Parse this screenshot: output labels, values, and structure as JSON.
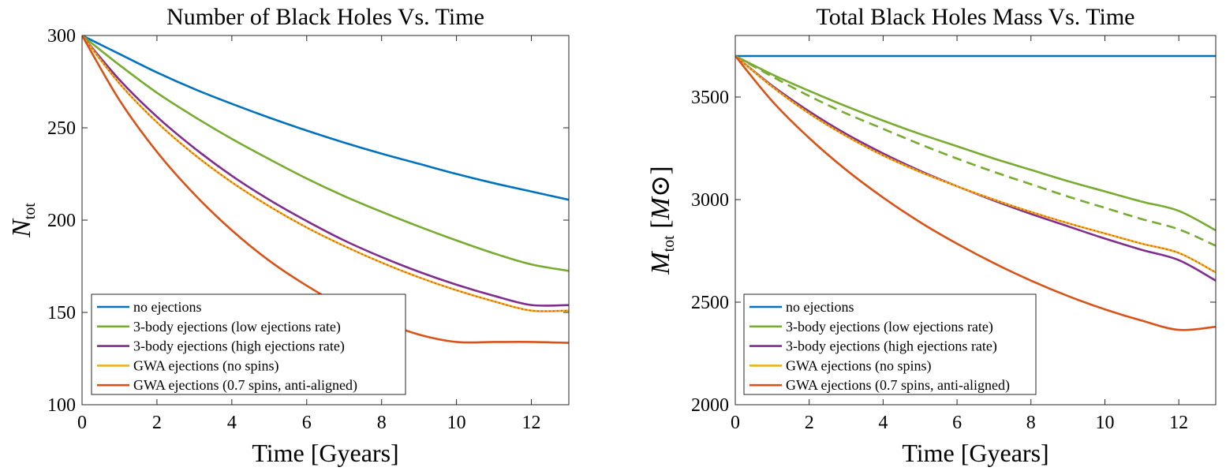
{
  "chart_data": [
    {
      "type": "line",
      "title": "Number of Black Holes Vs. Time",
      "xlabel": "Time [Gyears]",
      "ylabel": {
        "symbol": "N",
        "sub": "tot",
        "unit": ""
      },
      "xlim": [
        0,
        13
      ],
      "ylim": [
        100,
        300
      ],
      "xticks": [
        "0",
        "2",
        "4",
        "6",
        "8",
        "10",
        "12"
      ],
      "yticks": [
        "100",
        "150",
        "200",
        "250",
        "300"
      ],
      "legend_position": "bottom-left",
      "series": [
        {
          "name": "no ejections",
          "color": "#0072BD",
          "style": "solid",
          "x": [
            0,
            1,
            2,
            3,
            4,
            5,
            6,
            7,
            8,
            9,
            10,
            11,
            12,
            13
          ],
          "y": [
            300,
            290,
            280,
            271,
            263,
            255.5,
            248.5,
            242,
            236,
            230.5,
            225,
            220,
            215.5,
            211
          ]
        },
        {
          "name": "3-body ejections (low ejections rate)",
          "color": "#77AC30",
          "style": "solid",
          "x": [
            0,
            1,
            2,
            3,
            4,
            5,
            6,
            7,
            8,
            9,
            10,
            11,
            12,
            13
          ],
          "y": [
            300,
            284,
            269,
            256,
            244,
            233,
            222.5,
            213,
            204.5,
            196.5,
            189,
            182,
            176,
            172.5
          ]
        },
        {
          "name": "3-body ejections (high ejections rate)",
          "color": "#7E2F8E",
          "style": "solid",
          "x": [
            0,
            1,
            2,
            3,
            4,
            5,
            6,
            7,
            8,
            9,
            10,
            11,
            12,
            13
          ],
          "y": [
            300,
            276,
            256,
            239,
            224,
            211,
            199.5,
            189,
            180,
            172,
            165,
            159,
            154,
            154
          ]
        },
        {
          "name": "GWA ejections (no spins)",
          "color": "#EDB120",
          "style": "solid",
          "x": [
            0,
            1,
            2,
            3,
            4,
            5,
            6,
            7,
            8,
            9,
            10,
            11,
            12,
            13
          ],
          "y": [
            300,
            274,
            253,
            235.5,
            220.5,
            207.5,
            196,
            186,
            177,
            169,
            162,
            156,
            151,
            151
          ]
        },
        {
          "name": "",
          "color": "#D95319",
          "style": "dotted",
          "legend": false,
          "x": [
            0,
            1,
            2,
            3,
            4,
            5,
            6,
            7,
            8,
            9,
            10,
            11,
            12,
            13
          ],
          "y": [
            300,
            274,
            253,
            235.5,
            220.5,
            207.5,
            196,
            186,
            177,
            169,
            162,
            156,
            151,
            151
          ]
        },
        {
          "name": "GWA ejections (0.7 spins, anti-aligned)",
          "color": "#D95319",
          "style": "solid",
          "x": [
            0,
            1,
            2,
            3,
            4,
            5,
            6,
            7,
            8,
            9,
            10,
            11,
            12,
            13
          ],
          "y": [
            300,
            265,
            237,
            214,
            194.5,
            178,
            164.5,
            153,
            145,
            138,
            134,
            134,
            134,
            133.5
          ]
        }
      ]
    },
    {
      "type": "line",
      "title": "Total Black Holes Mass Vs. Time",
      "xlabel": "Time [Gyears]",
      "ylabel": {
        "symbol": "M",
        "sub": "tot",
        "unit": "M⊙"
      },
      "xlim": [
        0,
        13
      ],
      "ylim": [
        2000,
        3800
      ],
      "xticks": [
        "0",
        "2",
        "4",
        "6",
        "8",
        "10",
        "12"
      ],
      "yticks": [
        "2000",
        "2500",
        "3000",
        "3500"
      ],
      "legend_position": "bottom-left",
      "series": [
        {
          "name": "no ejections",
          "color": "#0072BD",
          "style": "solid",
          "x": [
            0,
            13
          ],
          "y": [
            3700,
            3700
          ]
        },
        {
          "name": "3-body ejections (low ejections rate)",
          "color": "#77AC30",
          "style": "solid",
          "x": [
            0,
            1,
            2,
            3,
            4,
            5,
            6,
            7,
            8,
            9,
            10,
            11,
            12,
            13
          ],
          "y": [
            3700,
            3610,
            3530,
            3455,
            3385,
            3320,
            3260,
            3200,
            3145,
            3090,
            3040,
            2990,
            2945,
            2850
          ]
        },
        {
          "name": "",
          "color": "#77AC30",
          "style": "dashed",
          "legend": false,
          "x": [
            0,
            1,
            2,
            3,
            4,
            5,
            6,
            7,
            8,
            9,
            10,
            11,
            12,
            13
          ],
          "y": [
            3700,
            3600,
            3505,
            3420,
            3345,
            3270,
            3200,
            3135,
            3075,
            3015,
            2960,
            2905,
            2855,
            2775
          ]
        },
        {
          "name": "3-body ejections (high ejections rate)",
          "color": "#7E2F8E",
          "style": "solid",
          "x": [
            0,
            1,
            2,
            3,
            4,
            5,
            6,
            7,
            8,
            9,
            10,
            11,
            12,
            13
          ],
          "y": [
            3700,
            3555,
            3430,
            3320,
            3225,
            3140,
            3065,
            2995,
            2930,
            2870,
            2810,
            2755,
            2705,
            2605
          ]
        },
        {
          "name": "GWA ejections (no spins)",
          "color": "#EDB120",
          "style": "solid",
          "x": [
            0,
            1,
            2,
            3,
            4,
            5,
            6,
            7,
            8,
            9,
            10,
            11,
            12,
            13
          ],
          "y": [
            3700,
            3550,
            3420,
            3310,
            3215,
            3135,
            3065,
            3000,
            2940,
            2885,
            2835,
            2785,
            2740,
            2645
          ]
        },
        {
          "name": "",
          "color": "#D95319",
          "style": "dotted",
          "legend": false,
          "x": [
            0,
            1,
            2,
            3,
            4,
            5,
            6,
            7,
            8,
            9,
            10,
            11,
            12,
            13
          ],
          "y": [
            3700,
            3550,
            3420,
            3310,
            3215,
            3135,
            3065,
            3000,
            2940,
            2885,
            2835,
            2785,
            2740,
            2645
          ]
        },
        {
          "name": "GWA ejections (0.7 spins, anti-aligned)",
          "color": "#D95319",
          "style": "solid",
          "x": [
            0,
            1,
            2,
            3,
            4,
            5,
            6,
            7,
            8,
            9,
            10,
            11,
            12,
            13
          ],
          "y": [
            3700,
            3480,
            3300,
            3145,
            3010,
            2890,
            2785,
            2690,
            2605,
            2530,
            2465,
            2410,
            2365,
            2380
          ]
        }
      ]
    }
  ]
}
